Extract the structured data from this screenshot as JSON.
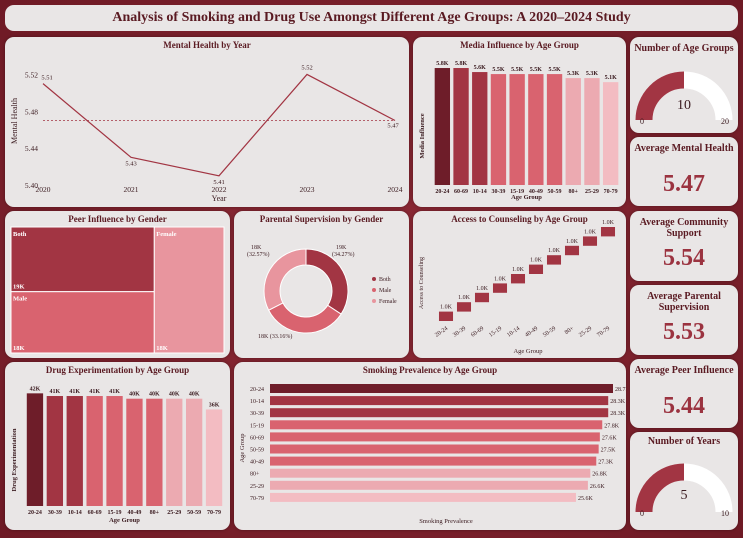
{
  "title": "Analysis of Smoking and Drug Use Amongst Different Age Groups: A 2020–2024 Study",
  "kpis": {
    "age_groups": {
      "title": "Number of Age Groups",
      "value": "10",
      "min": "0",
      "max": "20",
      "fraction": 0.5
    },
    "mental_health": {
      "title": "Average Mental Health",
      "value": "5.47"
    },
    "community": {
      "title": "Average Community Support",
      "value": "5.54"
    },
    "parental": {
      "title": "Average Parental Supervision",
      "value": "5.53"
    },
    "peer": {
      "title": "Average Peer Influence",
      "value": "5.44"
    },
    "years": {
      "title": "Number of Years",
      "value": "5",
      "min": "0",
      "max": "10",
      "fraction": 0.5
    }
  },
  "colors": {
    "dark": "#6e1d29",
    "mid": "#a23543",
    "base": "#d9636f",
    "light": "#ecaab1",
    "lighter": "#f3bcc2"
  },
  "chart_data": [
    {
      "id": "mental",
      "type": "line",
      "title": "Mental Health by Year",
      "x": [
        "2020",
        "2021",
        "2022",
        "2023",
        "2024"
      ],
      "values": [
        5.51,
        5.43,
        5.41,
        5.52,
        5.47
      ],
      "labels": [
        "5.51",
        "5.43",
        "5.41",
        "5.52",
        "5.47"
      ],
      "average": 5.47,
      "xlabel": "Year",
      "ylabel": "Mental Health",
      "yticks": [
        "5.40",
        "5.42",
        "5.44",
        "5.46",
        "5.48",
        "5.50",
        "5.52",
        "5.54"
      ],
      "ylim": [
        5.4,
        5.54
      ]
    },
    {
      "id": "media",
      "type": "bar",
      "title": "Media Influence by Age Group",
      "categories": [
        "20-24",
        "60-69",
        "10-14",
        "30-39",
        "15-19",
        "40-49",
        "50-59",
        "80+",
        "25-29",
        "70-79"
      ],
      "values": [
        5.8,
        5.8,
        5.6,
        5.5,
        5.5,
        5.5,
        5.5,
        5.3,
        5.3,
        5.1
      ],
      "labels": [
        "5.8K",
        "5.8K",
        "5.6K",
        "5.5K",
        "5.5K",
        "5.5K",
        "5.5K",
        "5.3K",
        "5.3K",
        "5.1K"
      ],
      "xlabel": "Age Group",
      "ylabel": "Media Influence"
    },
    {
      "id": "peer",
      "type": "treemap",
      "title": "Peer Influence by Gender",
      "categories": [
        "Both",
        "Male",
        "Female"
      ],
      "values": [
        19,
        18,
        18
      ],
      "labels": [
        "19K",
        "18K",
        "18K"
      ]
    },
    {
      "id": "parental",
      "type": "donut",
      "title": "Parental Supervision by Gender",
      "categories": [
        "Both",
        "Male",
        "Female"
      ],
      "values": [
        34.27,
        33.16,
        32.57
      ],
      "labels": [
        "19K (34.27%)",
        "18K (33.16%)",
        "18K (32.57%)"
      ],
      "legend": [
        "Both",
        "Male",
        "Female"
      ]
    },
    {
      "id": "counseling",
      "type": "waterfall",
      "title": "Access to Counseling by Age Group",
      "categories": [
        "20-24",
        "30-39",
        "60-69",
        "15-19",
        "10-14",
        "40-49",
        "50-59",
        "80+",
        "25-29",
        "70-79"
      ],
      "values": [
        1,
        1,
        1,
        1,
        1,
        1,
        1,
        1,
        1,
        1
      ],
      "labels": [
        "1.0K",
        "1.0K",
        "1.0K",
        "1.0K",
        "1.0K",
        "1.0K",
        "1.0K",
        "1.0K",
        "1.0K",
        "1.0K"
      ],
      "xlabel": "Age Group",
      "ylabel": "Access to Counseling"
    },
    {
      "id": "drug",
      "type": "bar",
      "title": "Drug Experimentation by Age Group",
      "categories": [
        "20-24",
        "30-39",
        "10-14",
        "60-69",
        "15-19",
        "40-49",
        "80+",
        "25-29",
        "50-59",
        "70-79"
      ],
      "values": [
        42,
        41,
        41,
        41,
        41,
        40,
        40,
        40,
        40,
        36
      ],
      "labels": [
        "42K",
        "41K",
        "41K",
        "41K",
        "41K",
        "40K",
        "40K",
        "40K",
        "40K",
        "36K"
      ],
      "xlabel": "Age Group",
      "ylabel": "Drug Experimentation"
    },
    {
      "id": "smoking",
      "type": "bar-horizontal",
      "title": "Smoking Prevalence by Age Group",
      "categories": [
        "20-24",
        "10-14",
        "30-39",
        "15-19",
        "60-69",
        "50-59",
        "40-49",
        "80+",
        "25-29",
        "70-79"
      ],
      "values": [
        28.7,
        28.3,
        28.3,
        27.8,
        27.6,
        27.5,
        27.3,
        26.8,
        26.6,
        25.6
      ],
      "labels": [
        "28.7K",
        "28.3K",
        "28.3K",
        "27.8K",
        "27.6K",
        "27.5K",
        "27.3K",
        "26.8K",
        "26.6K",
        "25.6K"
      ],
      "xlabel": "Smoking Prevalence",
      "ylabel": "Age Group"
    }
  ]
}
